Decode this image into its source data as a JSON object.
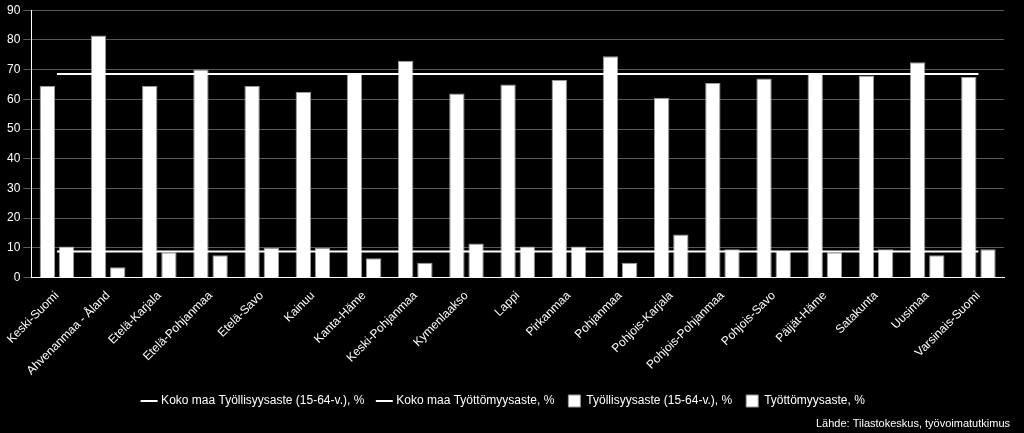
{
  "chart_data": {
    "type": "bar",
    "categories": [
      "Keski-Suomi",
      "Ahvenanmaa - Åland",
      "Etelä-Karjala",
      "Etelä-Pohjanmaa",
      "Etelä-Savo",
      "Kainuu",
      "Kanta-Häme",
      "Keski-Pohjanmaa",
      "Kymenlaakso",
      "Lappi",
      "Pirkanmaa",
      "Pohjanmaa",
      "Pohjois-Karjala",
      "Pohjois-Pohjanmaa",
      "Pohjois-Savo",
      "Päijät-Häme",
      "Satakunta",
      "Uusimaa",
      "Varsinais-Suomi"
    ],
    "series": [
      {
        "name": "Työllisyysaste (15-64-v.), %",
        "type": "bar",
        "color": "#ffffff",
        "values": [
          64.5,
          81.5,
          64.5,
          70,
          64.5,
          62.5,
          68.5,
          73,
          62,
          65,
          66.5,
          74.5,
          60.5,
          65.5,
          67,
          68.5,
          68,
          72.5,
          67.5
        ]
      },
      {
        "name": "Työttömyysaste, %",
        "type": "bar",
        "color": "#ffffff",
        "values": [
          10.5,
          3.5,
          8.5,
          7.5,
          10,
          10,
          6.5,
          5,
          11.5,
          10.5,
          10.5,
          5,
          14.5,
          9.5,
          9,
          8.5,
          9.5,
          7.5,
          9.5
        ]
      },
      {
        "name": "Koko maa Työllisyysaste (15-64-v.), %",
        "type": "line",
        "color": "#ffffff",
        "values": [
          68.5,
          68.5,
          68.5,
          68.5,
          68.5,
          68.5,
          68.5,
          68.5,
          68.5,
          68.5,
          68.5,
          68.5,
          68.5,
          68.5,
          68.5,
          68.5,
          68.5,
          68.5,
          68.5
        ]
      },
      {
        "name": "Koko maa Työttömyysaste, %",
        "type": "line",
        "color": "#ffffff",
        "values": [
          8.8,
          8.8,
          8.8,
          8.8,
          8.8,
          8.8,
          8.8,
          8.8,
          8.8,
          8.8,
          8.8,
          8.8,
          8.8,
          8.8,
          8.8,
          8.8,
          8.8,
          8.8,
          8.8
        ]
      }
    ],
    "ylim": [
      0,
      90
    ],
    "yticks": [
      0,
      10,
      20,
      30,
      40,
      50,
      60,
      70,
      80,
      90
    ],
    "grid": true,
    "legend": "bottom",
    "annotations": [
      "Lähde: Tilastokeskus, työvoimatutkimus"
    ]
  }
}
